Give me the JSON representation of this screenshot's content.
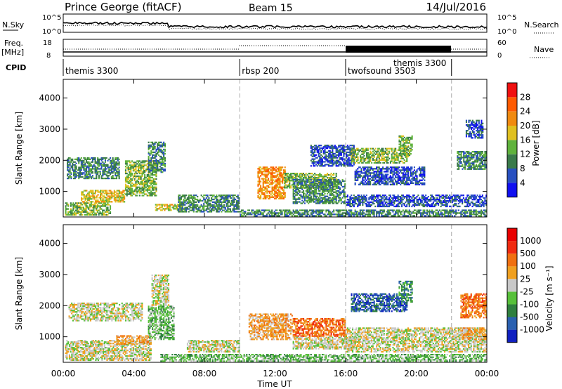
{
  "header": {
    "station": "Prince George (fitACF)",
    "beam": "Beam 15",
    "date": "14/Jul/2016"
  },
  "summary": {
    "nsky_label": "N.Sky",
    "nsky_ticks": [
      "10^5",
      "10^0"
    ],
    "nsearch_label": "N.Search",
    "nsearch_ticks": [
      "10^5",
      "10^0"
    ],
    "freq_label_1": "Freq.",
    "freq_label_2": "[MHz]",
    "freq_ticks": [
      "18",
      "8"
    ],
    "nave_label": "Nave",
    "nave_ticks": [
      "60",
      "0"
    ],
    "cpid_label": "CPID",
    "cpid_segments": [
      {
        "start_h": 0,
        "end_h": 10,
        "label": "themis 3300"
      },
      {
        "start_h": 10,
        "end_h": 16,
        "label": "rbsp 200"
      },
      {
        "start_h": 16,
        "end_h": 22,
        "label": "twofsound 3503"
      },
      {
        "start_h": 22,
        "end_h": 24,
        "label": ""
      }
    ],
    "themis_overlay_label": "themis 3300"
  },
  "chart_data": [
    {
      "type": "heatmap",
      "name": "power",
      "ylabel": "Slant Range [km]",
      "yticks": [
        "1000",
        "2000",
        "3000",
        "4000"
      ],
      "ylim": [
        180,
        4600
      ],
      "xlim": [
        0,
        24
      ],
      "colorbar_label": "Power [dB]",
      "colorbar_ticks": [
        "4",
        "8",
        "12",
        "16",
        "20",
        "24",
        "28"
      ],
      "colorbar_colors": [
        "#1010f0",
        "#2850c0",
        "#3a7a4a",
        "#5fb23c",
        "#e0c020",
        "#f08a10",
        "#ff5a00",
        "#f01010"
      ],
      "vertical_markers_h": [
        10,
        16,
        22
      ],
      "blobs": [
        {
          "t0": 0.1,
          "t1": 2.7,
          "r0": 230,
          "r1": 650,
          "v": 3,
          "s": 2
        },
        {
          "t0": 0.2,
          "t1": 3.2,
          "r0": 1400,
          "r1": 2100,
          "v": 2,
          "s": 3
        },
        {
          "t0": 1.0,
          "t1": 3.5,
          "r0": 650,
          "r1": 1050,
          "v": 4,
          "s": 4
        },
        {
          "t0": 3.5,
          "t1": 5.3,
          "r0": 850,
          "r1": 2000,
          "v": 3,
          "s": 5
        },
        {
          "t0": 4.8,
          "t1": 5.8,
          "r0": 1600,
          "r1": 2600,
          "v": 2,
          "s": 6
        },
        {
          "t0": 5.2,
          "t1": 6.8,
          "r0": 380,
          "r1": 600,
          "v": 4,
          "s": 7
        },
        {
          "t0": 6.5,
          "t1": 10.0,
          "r0": 330,
          "r1": 900,
          "v": 2,
          "s": 8
        },
        {
          "t0": 10.0,
          "t1": 24.0,
          "r0": 200,
          "r1": 420,
          "v": 2,
          "s": 9
        },
        {
          "t0": 11.0,
          "t1": 12.6,
          "r0": 750,
          "r1": 1800,
          "v": 5,
          "s": 10
        },
        {
          "t0": 12.5,
          "t1": 15.5,
          "r0": 1100,
          "r1": 1600,
          "v": 3,
          "s": 11
        },
        {
          "t0": 13.0,
          "t1": 16.0,
          "r0": 600,
          "r1": 1400,
          "v": 2,
          "s": 12
        },
        {
          "t0": 14.0,
          "t1": 16.5,
          "r0": 1800,
          "r1": 2500,
          "v": 1,
          "s": 13
        },
        {
          "t0": 16.3,
          "t1": 19.5,
          "r0": 1900,
          "r1": 2400,
          "v": 3,
          "s": 14
        },
        {
          "t0": 16.0,
          "t1": 24.0,
          "r0": 500,
          "r1": 900,
          "v": 1,
          "s": 15
        },
        {
          "t0": 16.5,
          "t1": 20.5,
          "r0": 1200,
          "r1": 1800,
          "v": 1,
          "s": 16
        },
        {
          "t0": 19.0,
          "t1": 19.8,
          "r0": 2100,
          "r1": 2800,
          "v": 3,
          "s": 17
        },
        {
          "t0": 22.3,
          "t1": 24.0,
          "r0": 1700,
          "r1": 2300,
          "v": 2,
          "s": 18
        },
        {
          "t0": 22.8,
          "t1": 23.8,
          "r0": 2700,
          "r1": 3300,
          "v": 1,
          "s": 19
        }
      ]
    },
    {
      "type": "heatmap",
      "name": "velocity",
      "ylabel": "Slant Range [km]",
      "yticks": [
        "1000",
        "2000",
        "3000",
        "4000"
      ],
      "ylim": [
        180,
        4600
      ],
      "xlim": [
        0,
        24
      ],
      "xlabel": "Time UT",
      "xticks": [
        "00:00",
        "04:00",
        "08:00",
        "12:00",
        "16:00",
        "20:00",
        "00:00"
      ],
      "colorbar_label": "Velocity [m s⁻¹]",
      "colorbar_ticks": [
        "1000",
        "500",
        "100",
        "25",
        "-25",
        "-100",
        "-500",
        "-1000"
      ],
      "colorbar_colors": [
        "#1020c0",
        "#2a60b0",
        "#2f7f3f",
        "#57c03a",
        "#c8c8c8",
        "#f0a020",
        "#f07010",
        "#f02a10",
        "#e80000"
      ],
      "vertical_markers_h": [
        10,
        16,
        22
      ],
      "blobs": [
        {
          "t0": 0.1,
          "t1": 5.0,
          "r0": 230,
          "r1": 900,
          "v": 4,
          "s": 21
        },
        {
          "t0": 0.3,
          "t1": 4.5,
          "r0": 1500,
          "r1": 2100,
          "v": 4,
          "s": 22
        },
        {
          "t0": 3.0,
          "t1": 5.0,
          "r0": 750,
          "r1": 1050,
          "v": 5,
          "s": 23
        },
        {
          "t0": 4.8,
          "t1": 6.3,
          "r0": 900,
          "r1": 2000,
          "v": 3,
          "s": 24
        },
        {
          "t0": 5.0,
          "t1": 6.0,
          "r0": 2000,
          "r1": 3000,
          "v": 4,
          "s": 25
        },
        {
          "t0": 5.5,
          "t1": 24.0,
          "r0": 200,
          "r1": 450,
          "v": 3,
          "s": 26
        },
        {
          "t0": 7.0,
          "t1": 10.0,
          "r0": 500,
          "r1": 900,
          "v": 4,
          "s": 27
        },
        {
          "t0": 10.5,
          "t1": 13.0,
          "r0": 900,
          "r1": 1750,
          "v": 5,
          "s": 28
        },
        {
          "t0": 13.0,
          "t1": 16.0,
          "r0": 1000,
          "r1": 1600,
          "v": 6,
          "s": 29
        },
        {
          "t0": 13.0,
          "t1": 16.5,
          "r0": 600,
          "r1": 1000,
          "v": 4,
          "s": 30
        },
        {
          "t0": 16.3,
          "t1": 19.5,
          "r0": 1800,
          "r1": 2400,
          "v": 1,
          "s": 31
        },
        {
          "t0": 19.0,
          "t1": 19.8,
          "r0": 2100,
          "r1": 2800,
          "v": 2,
          "s": 32
        },
        {
          "t0": 16.0,
          "t1": 24.0,
          "r0": 500,
          "r1": 1300,
          "v": 4,
          "s": 33
        },
        {
          "t0": 22.5,
          "t1": 24.0,
          "r0": 1600,
          "r1": 2400,
          "v": 6,
          "s": 34
        },
        {
          "t0": 22.5,
          "t1": 24.0,
          "r0": 900,
          "r1": 1300,
          "v": 5,
          "s": 35
        }
      ]
    }
  ]
}
